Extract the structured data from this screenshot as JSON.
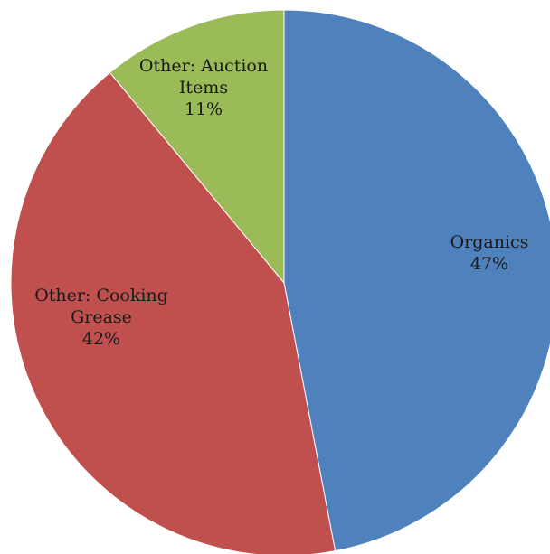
{
  "chart_data": {
    "type": "pie",
    "slices": [
      {
        "label_lines": [
          "Organics"
        ],
        "percent_label": "47%",
        "value": 47,
        "color": "#4f81bd"
      },
      {
        "label_lines": [
          "Other: Cooking",
          "Grease"
        ],
        "percent_label": "42%",
        "value": 42,
        "color": "#c0504d"
      },
      {
        "label_lines": [
          "Other: Auction",
          "Items"
        ],
        "percent_label": "11%",
        "value": 11,
        "color": "#9bbb59"
      }
    ]
  }
}
